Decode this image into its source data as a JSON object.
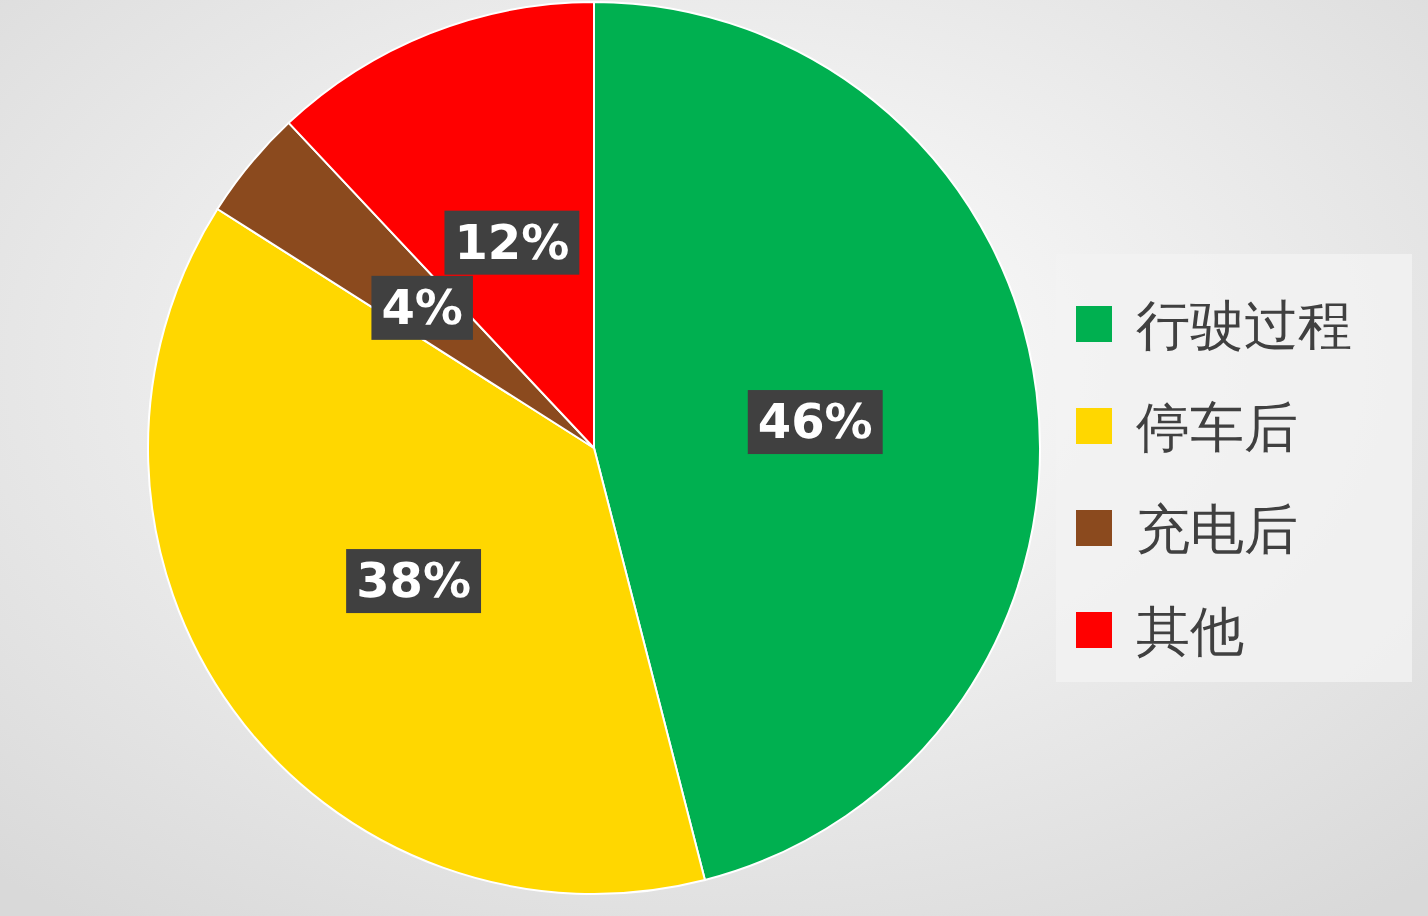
{
  "chart_data": {
    "type": "pie",
    "categories": [
      "行驶过程",
      "停车后",
      "充电后",
      "其他"
    ],
    "values": [
      46,
      38,
      4,
      12
    ],
    "colors": [
      "#00b050",
      "#ffd700",
      "#8b4a1e",
      "#ff0000"
    ],
    "value_labels": [
      "46%",
      "38%",
      "4%",
      "12%"
    ],
    "legend": "right"
  }
}
